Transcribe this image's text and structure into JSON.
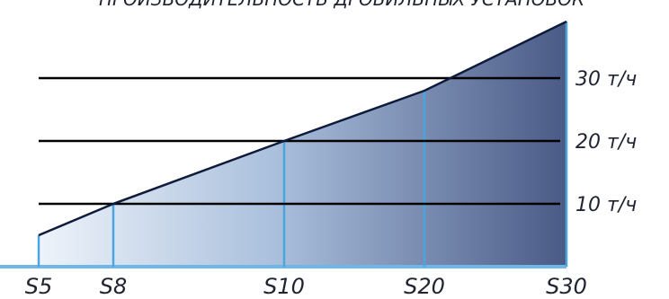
{
  "chart_data": {
    "type": "area",
    "title": "",
    "xlabel": "",
    "ylabel": "",
    "unit": "т/ч",
    "categories": [
      "S5",
      "S8",
      "S10",
      "S20",
      "S30"
    ],
    "x": [
      5,
      8,
      10,
      20,
      30
    ],
    "values": [
      5,
      10,
      20,
      28,
      39
    ],
    "ylim": [
      0,
      40
    ],
    "grid_lines": [
      10,
      20,
      30
    ],
    "grid_labels": [
      "10 т/ч",
      "20 т/ч",
      "30 т/ч"
    ],
    "grid": true,
    "legend": "none",
    "colors": {
      "fill_light": "#e6edf7",
      "fill_dark": "#4a5a86",
      "line": "#0f1b3a",
      "drop_line": "#4ba6e0",
      "grid": "#000000",
      "baseline": "#6fb7e8"
    }
  }
}
